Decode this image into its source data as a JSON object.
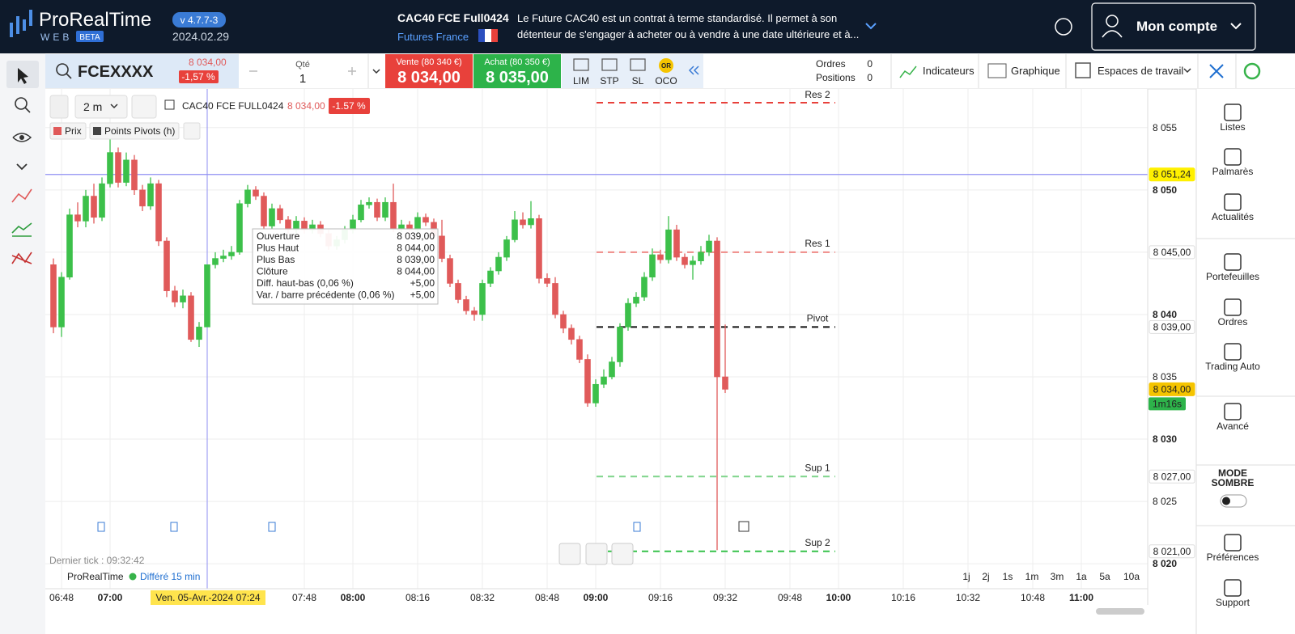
{
  "ui": {
    "header": {
      "logo": "ProRealTime",
      "logo_sub": "WEB",
      "logo_badge": "BETA",
      "version": "v 4.7.7-3",
      "date": "2024.02.29",
      "instrument": "CAC40 FCE Full0424",
      "market": "Futures France",
      "description": [
        "Le Future CAC40 est un contrat à terme standardisé. Il permet à son",
        "détenteur de s'engager à acheter ou à vendre à une date ultérieure et à..."
      ],
      "account": "Mon compte"
    },
    "toolbar": {
      "symbol": "FCEXXXX",
      "price": "8 034,00",
      "change": "-1,57 %",
      "qty_label": "Qté",
      "qty": "1",
      "sell_label": "Vente (80 340 €)",
      "sell_price": "8 034,00",
      "buy_label": "Achat (80 350 €)",
      "buy_price": "8 035,00",
      "orders": [
        "LIM",
        "STP",
        "SL",
        "OCO"
      ],
      "oco_badge": "OR",
      "orders_label": "Ordres",
      "orders_count": "0",
      "positions_label": "Positions",
      "positions_count": "0",
      "menu": [
        "Indicateurs",
        "Graphique",
        "Espaces de travail"
      ]
    },
    "chart_header": {
      "timeframe": "2 m",
      "instrument": "CAC40 FCE FULL0424",
      "price": "8 034,00",
      "change": "-1.57 %",
      "legend": [
        "Prix",
        "Points Pivots (h)"
      ]
    },
    "tooltip": [
      [
        "Ouverture",
        "8 039,00"
      ],
      [
        "Plus Haut",
        "8 044,00"
      ],
      [
        "Plus Bas",
        "8 039,00"
      ],
      [
        "Clôture",
        "8 044,00"
      ],
      [
        "Diff. haut-bas (0,06 %)",
        "+5,00"
      ],
      [
        "Var. / barre précédente (0,06 %)",
        "+5,00"
      ]
    ],
    "footer": {
      "last_tick": "Dernier tick : 09:32:42",
      "brand": "ProRealTime",
      "delay": "Différé 15 min",
      "crosshair_date": "Ven. 05-Avr.-2024 07:24",
      "timer": "1m16s",
      "periods": [
        "1j",
        "2j",
        "1s",
        "1m",
        "3m",
        "1a",
        "5a",
        "10a"
      ]
    },
    "sidebar": {
      "top": [
        "Listes",
        "Palmarès",
        "Actualités"
      ],
      "middle": [
        "Portefeuilles",
        "Ordres",
        "Trading Auto"
      ],
      "advanced": "Avancé",
      "dark_mode": [
        "MODE",
        "SOMBRE"
      ],
      "bottom": [
        "Préférences",
        "Support"
      ]
    }
  },
  "chart_data": {
    "type": "candlestick",
    "up_color": "#3cc04a",
    "down_color": "#e05a5a",
    "grid": true,
    "xlim": [
      "06:44",
      "11:16"
    ],
    "ylim": [
      8018,
      8058.1
    ],
    "xticks": [
      "06:48",
      "07:00",
      "07:48",
      "08:00",
      "08:16",
      "08:32",
      "08:48",
      "09:00",
      "09:16",
      "09:32",
      "09:48",
      "10:00",
      "10:16",
      "10:32",
      "10:48",
      "11:00"
    ],
    "yticks": [
      {
        "value": 8020,
        "label": "8 020"
      },
      {
        "value": 8025,
        "label": "8 025"
      },
      {
        "value": 8030,
        "label": "8 030"
      },
      {
        "value": 8035,
        "label": "8 035"
      },
      {
        "value": 8040,
        "label": "8 040"
      },
      {
        "value": 8045,
        "label": "8 045"
      },
      {
        "value": 8050,
        "label": "8 050"
      },
      {
        "value": 8055,
        "label": "8 055"
      }
    ],
    "x": [
      "06:46",
      "06:48",
      "06:50",
      "06:52",
      "06:54",
      "06:56",
      "06:58",
      "07:00",
      "07:02",
      "07:04",
      "07:06",
      "07:08",
      "07:10",
      "07:12",
      "07:14",
      "07:16",
      "07:18",
      "07:20",
      "07:22",
      "07:24",
      "07:26",
      "07:28",
      "07:30",
      "07:32",
      "07:34",
      "07:36",
      "07:38",
      "07:40",
      "07:42",
      "07:44",
      "07:46",
      "07:48",
      "07:50",
      "07:52",
      "07:54",
      "07:56",
      "07:58",
      "08:00",
      "08:02",
      "08:04",
      "08:06",
      "08:08",
      "08:10",
      "08:12",
      "08:14",
      "08:16",
      "08:18",
      "08:20",
      "08:22",
      "08:24",
      "08:26",
      "08:28",
      "08:30",
      "08:32",
      "08:34",
      "08:36",
      "08:38",
      "08:40",
      "08:42",
      "08:44",
      "08:46",
      "08:48",
      "08:50",
      "08:52",
      "08:54",
      "08:56",
      "08:58",
      "09:00",
      "09:02",
      "09:04",
      "09:06",
      "09:08",
      "09:10",
      "09:12",
      "09:14",
      "09:16",
      "09:18",
      "09:20",
      "09:22",
      "09:24",
      "09:26",
      "09:28",
      "09:30",
      "09:32"
    ],
    "open": [
      8044,
      8039,
      8043,
      8048,
      8047.5,
      8049.5,
      8047.8,
      8050.5,
      8053,
      8050.6,
      8052.4,
      8050,
      8048.7,
      8050.5,
      8045.9,
      8041.9,
      8041,
      8041.5,
      8038,
      8039,
      8044,
      8044.5,
      8044.7,
      8045,
      8048.9,
      8050,
      8049.5,
      8047.1,
      8048.5,
      8047.6,
      8046.8,
      8047.5,
      8046.8,
      8047.2,
      8046.5,
      8045.5,
      8046,
      8046.8,
      8047.6,
      8048.8,
      8049,
      8047.8,
      8049,
      8046.9,
      8047.2,
      8046.8,
      8047.8,
      8047.4,
      8046.3,
      8044.5,
      8042.5,
      8041.2,
      8040.3,
      8040,
      8042.5,
      8043.5,
      8044.6,
      8046,
      8047.6,
      8047.2,
      8047.7,
      8042.9,
      8042.5,
      8040,
      8038.9,
      8038,
      8036.4,
      8032.9,
      8034.4,
      8035,
      8036.2,
      8039,
      8040.9,
      8041.4,
      8043,
      8044.8,
      8044.4,
      8046.8,
      8044.6,
      8044,
      8044.3,
      8045,
      8045.9,
      8035
    ],
    "high": [
      8044.5,
      8043.4,
      8048.5,
      8049,
      8050,
      8050.5,
      8051,
      8054.5,
      8053.4,
      8053,
      8052.8,
      8050.4,
      8051,
      8050.8,
      8046.2,
      8042.3,
      8042,
      8041.8,
      8039.4,
      8044,
      8045,
      8045.2,
      8045.5,
      8049.2,
      8050.4,
      8050.3,
      8049.8,
      8048.9,
      8048.8,
      8047.9,
      8047.9,
      8047.8,
      8047.6,
      8047.5,
      8046.8,
      8046.3,
      8047.1,
      8048,
      8049.2,
      8049.4,
      8049.3,
      8049.4,
      8050.5,
      8047.6,
      8047.5,
      8048.2,
      8048.1,
      8047.7,
      8047.6,
      8044.8,
      8042.8,
      8041.5,
      8040.6,
      8042.8,
      8043.8,
      8045,
      8046.3,
      8048.3,
      8048.2,
      8049.1,
      8048,
      8043.3,
      8043,
      8040.3,
      8039.2,
      8038.3,
      8036.8,
      8034.8,
      8035.6,
      8036.6,
      8039.3,
      8041.3,
      8041.8,
      8043.4,
      8045.3,
      8045.2,
      8047.9,
      8047.2,
      8044.9,
      8044.7,
      8045.5,
      8046.4,
      8046.2,
      8039.2
    ],
    "low": [
      8038.5,
      8038.2,
      8042.8,
      8047,
      8047,
      8047.3,
      8047.5,
      8050.2,
      8050.2,
      8050.3,
      8049.6,
      8048.3,
      8048.4,
      8045.5,
      8041.4,
      8040.6,
      8040.5,
      8037.8,
      8037.4,
      8039,
      8043.7,
      8044.2,
      8044.4,
      8044.8,
      8048.6,
      8049.2,
      8046.8,
      8046.9,
      8047.3,
      8046.5,
      8046.5,
      8046.5,
      8046.5,
      8046.2,
      8045.2,
      8045.2,
      8045.7,
      8046.5,
      8047.4,
      8048.5,
      8047.5,
      8047.5,
      8046.6,
      8046.6,
      8046.5,
      8046.5,
      8047.1,
      8046,
      8044.2,
      8042.2,
      8040.9,
      8040,
      8039.5,
      8039.5,
      8042.2,
      8043.2,
      8044.3,
      8045.8,
      8046.9,
      8046.9,
      8042.5,
      8042.2,
      8039.7,
      8038.5,
      8037.6,
      8036.1,
      8032.6,
      8032.6,
      8034.1,
      8034.8,
      8035.8,
      8038.7,
      8040.6,
      8041.1,
      8042.7,
      8044.1,
      8044.1,
      8044.3,
      8043.7,
      8042.8,
      8044,
      8044.7,
      8021.1,
      8033.7
    ],
    "close": [
      8039,
      8043,
      8048,
      8047.5,
      8049.5,
      8047.8,
      8050.5,
      8053,
      8050.6,
      8052.4,
      8050,
      8048.7,
      8050.5,
      8045.9,
      8041.9,
      8041,
      8041.5,
      8038,
      8039,
      8044,
      8044.5,
      8044.7,
      8045,
      8048.9,
      8050,
      8049.5,
      8047.1,
      8048.5,
      8047.6,
      8046.8,
      8047.5,
      8046.8,
      8047.2,
      8046.5,
      8045.5,
      8046,
      8046.8,
      8047.6,
      8048.8,
      8049,
      8047.8,
      8049,
      8046.9,
      8047.2,
      8046.8,
      8047.8,
      8047.4,
      8046.3,
      8044.5,
      8042.5,
      8041.2,
      8040.3,
      8040,
      8042.5,
      8043.5,
      8044.6,
      8046,
      8047.6,
      8047.2,
      8047.7,
      8042.9,
      8042.5,
      8040,
      8038.9,
      8038,
      8036.4,
      8032.9,
      8034.4,
      8035,
      8036.2,
      8039,
      8040.9,
      8041.4,
      8043,
      8044.8,
      8044.4,
      8046.8,
      8044.6,
      8044,
      8044.3,
      8045,
      8045.9,
      8035,
      8034
    ],
    "pivots": [
      {
        "name": "Res 2",
        "value": 8057,
        "color": "#e8413b"
      },
      {
        "name": "Res 1",
        "value": 8045,
        "color": "#ef8a86"
      },
      {
        "name": "Pivot",
        "value": 8039,
        "color": "#111111"
      },
      {
        "name": "Sup 1",
        "value": 8027,
        "color": "#7fd48a"
      },
      {
        "name": "Sup 2",
        "value": 8021,
        "color": "#37c24a"
      }
    ],
    "cursor_line": {
      "value": 8051.24,
      "label": "8 051,24",
      "color": "#8f8ff2"
    },
    "crosshair_x": "07:24",
    "price_labels": [
      {
        "value": 8045,
        "label": "8 045,00",
        "color": "#e05a5a",
        "background": "#ffffff"
      },
      {
        "value": 8039,
        "label": "8 039,00",
        "color": "#111111",
        "background": "#ffffff"
      },
      {
        "value": 8034,
        "label": "8 034,00",
        "color": "#111111",
        "background": "#f5c400"
      },
      {
        "value": 8027,
        "label": "8 027,00",
        "color": "#37b34a",
        "background": "#ffffff"
      },
      {
        "value": 8021,
        "label": "8 021,00",
        "color": "#37b34a",
        "background": "#ffffff"
      }
    ]
  }
}
